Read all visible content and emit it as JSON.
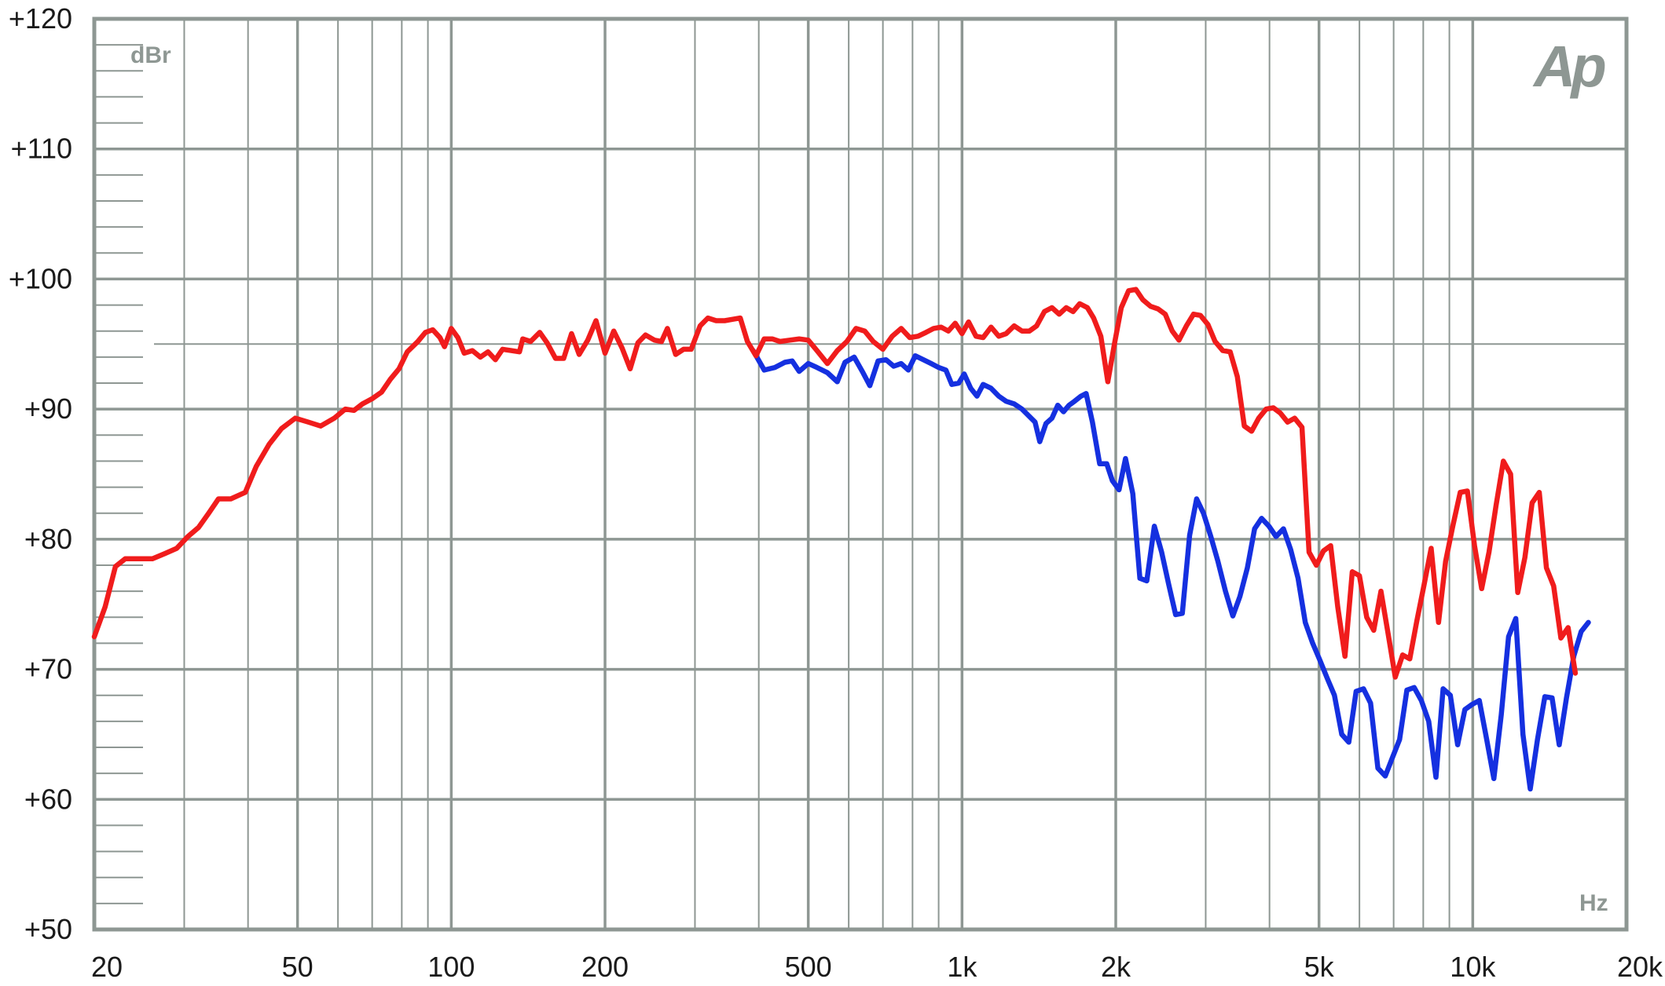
{
  "chart_data": {
    "type": "line",
    "xscale": "log",
    "xlim": [
      20,
      20000
    ],
    "ylim": [
      50,
      120
    ],
    "grid": true,
    "xlabel": "Hz",
    "ylabel": "dBr",
    "logo": "Ap",
    "x_ticks": [
      {
        "value": 20,
        "label": "20"
      },
      {
        "value": 50,
        "label": "50"
      },
      {
        "value": 100,
        "label": "100"
      },
      {
        "value": 200,
        "label": "200"
      },
      {
        "value": 500,
        "label": "500"
      },
      {
        "value": 1000,
        "label": "1k"
      },
      {
        "value": 2000,
        "label": "2k"
      },
      {
        "value": 5000,
        "label": "5k"
      },
      {
        "value": 10000,
        "label": "10k"
      },
      {
        "value": 20000,
        "label": "20k"
      }
    ],
    "y_ticks": [
      {
        "value": 120,
        "label": "+120"
      },
      {
        "value": 110,
        "label": "+110"
      },
      {
        "value": 100,
        "label": "+100"
      },
      {
        "value": 90,
        "label": "+90"
      },
      {
        "value": 80,
        "label": "+80"
      },
      {
        "value": 70,
        "label": "+70"
      },
      {
        "value": 60,
        "label": "+60"
      },
      {
        "value": 50,
        "label": "+50"
      }
    ],
    "series": [
      {
        "color": "#1530e0",
        "points": [
          [
            390,
            94.5
          ],
          [
            410,
            93.0
          ],
          [
            430,
            93.2
          ],
          [
            450,
            93.6
          ],
          [
            465,
            93.7
          ],
          [
            480,
            92.9
          ],
          [
            500,
            93.5
          ],
          [
            520,
            93.2
          ],
          [
            545,
            92.8
          ],
          [
            570,
            92.1
          ],
          [
            590,
            93.6
          ],
          [
            615,
            94.0
          ],
          [
            640,
            92.8
          ],
          [
            660,
            91.8
          ],
          [
            685,
            93.7
          ],
          [
            710,
            93.8
          ],
          [
            735,
            93.3
          ],
          [
            760,
            93.5
          ],
          [
            785,
            93.0
          ],
          [
            810,
            94.1
          ],
          [
            840,
            93.8
          ],
          [
            870,
            93.5
          ],
          [
            900,
            93.2
          ],
          [
            930,
            93.0
          ],
          [
            955,
            91.9
          ],
          [
            985,
            92.0
          ],
          [
            1010,
            92.7
          ],
          [
            1040,
            91.6
          ],
          [
            1070,
            91.0
          ],
          [
            1100,
            91.9
          ],
          [
            1140,
            91.6
          ],
          [
            1180,
            91.0
          ],
          [
            1220,
            90.6
          ],
          [
            1265,
            90.4
          ],
          [
            1310,
            90.0
          ],
          [
            1350,
            89.5
          ],
          [
            1390,
            89.0
          ],
          [
            1420,
            87.5
          ],
          [
            1460,
            88.9
          ],
          [
            1500,
            89.3
          ],
          [
            1540,
            90.3
          ],
          [
            1580,
            89.8
          ],
          [
            1620,
            90.3
          ],
          [
            1660,
            90.6
          ],
          [
            1710,
            91.0
          ],
          [
            1750,
            91.2
          ],
          [
            1800,
            89.0
          ],
          [
            1860,
            85.8
          ],
          [
            1920,
            85.8
          ],
          [
            1970,
            84.5
          ],
          [
            2030,
            83.8
          ],
          [
            2090,
            86.2
          ],
          [
            2160,
            83.5
          ],
          [
            2230,
            77.0
          ],
          [
            2300,
            76.8
          ],
          [
            2380,
            81.0
          ],
          [
            2460,
            79.0
          ],
          [
            2540,
            76.5
          ],
          [
            2620,
            74.2
          ],
          [
            2700,
            74.3
          ],
          [
            2790,
            80.3
          ],
          [
            2880,
            83.1
          ],
          [
            2970,
            82.0
          ],
          [
            3070,
            80.2
          ],
          [
            3170,
            78.3
          ],
          [
            3280,
            76.0
          ],
          [
            3390,
            74.1
          ],
          [
            3500,
            75.6
          ],
          [
            3620,
            77.8
          ],
          [
            3740,
            80.8
          ],
          [
            3860,
            81.6
          ],
          [
            3990,
            81.0
          ],
          [
            4120,
            80.2
          ],
          [
            4260,
            80.8
          ],
          [
            4400,
            79.2
          ],
          [
            4550,
            77.0
          ],
          [
            4700,
            73.6
          ],
          [
            4860,
            72.0
          ],
          [
            5020,
            70.7
          ],
          [
            5190,
            69.3
          ],
          [
            5360,
            68.0
          ],
          [
            5540,
            65.0
          ],
          [
            5720,
            64.4
          ],
          [
            5910,
            68.3
          ],
          [
            6110,
            68.5
          ],
          [
            6310,
            67.4
          ],
          [
            6520,
            62.4
          ],
          [
            6740,
            61.8
          ],
          [
            6960,
            63.2
          ],
          [
            7190,
            64.6
          ],
          [
            7430,
            68.4
          ],
          [
            7680,
            68.6
          ],
          [
            7930,
            67.6
          ],
          [
            8200,
            66.0
          ],
          [
            8470,
            61.7
          ],
          [
            8750,
            68.5
          ],
          [
            9040,
            68.0
          ],
          [
            9340,
            64.2
          ],
          [
            9650,
            66.9
          ],
          [
            9970,
            67.3
          ],
          [
            10300,
            67.6
          ],
          [
            10650,
            64.6
          ],
          [
            11000,
            61.6
          ],
          [
            11370,
            66.5
          ],
          [
            11750,
            72.5
          ],
          [
            12140,
            73.9
          ],
          [
            12540,
            65.0
          ],
          [
            12960,
            60.8
          ],
          [
            13390,
            64.6
          ],
          [
            13840,
            67.9
          ],
          [
            14300,
            67.8
          ],
          [
            14770,
            64.2
          ],
          [
            15260,
            67.8
          ],
          [
            15770,
            71.0
          ],
          [
            16300,
            72.9
          ],
          [
            16840,
            73.6
          ]
        ]
      },
      {
        "color": "#f01c1c",
        "points": [
          [
            20,
            72.5
          ],
          [
            21,
            74.8
          ],
          [
            22,
            77.9
          ],
          [
            23,
            78.5
          ],
          [
            24.5,
            78.5
          ],
          [
            26,
            78.5
          ],
          [
            27.5,
            78.9
          ],
          [
            29,
            79.3
          ],
          [
            30.5,
            80.2
          ],
          [
            32,
            80.9
          ],
          [
            33.5,
            82.0
          ],
          [
            35,
            83.1
          ],
          [
            37,
            83.1
          ],
          [
            39.5,
            83.6
          ],
          [
            41.5,
            85.6
          ],
          [
            44,
            87.3
          ],
          [
            46.5,
            88.5
          ],
          [
            49.5,
            89.3
          ],
          [
            52.5,
            89.0
          ],
          [
            55.5,
            88.7
          ],
          [
            59,
            89.3
          ],
          [
            62,
            90.0
          ],
          [
            64.5,
            89.9
          ],
          [
            67,
            90.4
          ],
          [
            70,
            90.8
          ],
          [
            73,
            91.3
          ],
          [
            76,
            92.3
          ],
          [
            79,
            93.1
          ],
          [
            82,
            94.4
          ],
          [
            86,
            95.2
          ],
          [
            89,
            95.9
          ],
          [
            92,
            96.1
          ],
          [
            95,
            95.5
          ],
          [
            97,
            94.8
          ],
          [
            100,
            96.2
          ],
          [
            103,
            95.5
          ],
          [
            106,
            94.3
          ],
          [
            110,
            94.5
          ],
          [
            114,
            94.0
          ],
          [
            118,
            94.4
          ],
          [
            122,
            93.8
          ],
          [
            126,
            94.6
          ],
          [
            131,
            94.5
          ],
          [
            136,
            94.4
          ],
          [
            138,
            95.4
          ],
          [
            143,
            95.2
          ],
          [
            149,
            95.9
          ],
          [
            154,
            95.1
          ],
          [
            160,
            93.9
          ],
          [
            166,
            93.9
          ],
          [
            172,
            95.8
          ],
          [
            178,
            94.2
          ],
          [
            185,
            95.3
          ],
          [
            192,
            96.8
          ],
          [
            200,
            94.3
          ],
          [
            208,
            96.0
          ],
          [
            216,
            94.7
          ],
          [
            224,
            93.1
          ],
          [
            232,
            95.1
          ],
          [
            240,
            95.7
          ],
          [
            250,
            95.3
          ],
          [
            258,
            95.2
          ],
          [
            265,
            96.2
          ],
          [
            275,
            94.2
          ],
          [
            285,
            94.6
          ],
          [
            295,
            94.6
          ],
          [
            307,
            96.4
          ],
          [
            318,
            97.0
          ],
          [
            330,
            96.8
          ],
          [
            343,
            96.8
          ],
          [
            355,
            96.9
          ],
          [
            368,
            97.0
          ],
          [
            380,
            95.2
          ],
          [
            395,
            94.1
          ],
          [
            410,
            95.4
          ],
          [
            425,
            95.4
          ],
          [
            440,
            95.2
          ],
          [
            460,
            95.3
          ],
          [
            480,
            95.4
          ],
          [
            500,
            95.3
          ],
          [
            520,
            94.5
          ],
          [
            545,
            93.5
          ],
          [
            570,
            94.5
          ],
          [
            595,
            95.2
          ],
          [
            620,
            96.2
          ],
          [
            645,
            96.0
          ],
          [
            670,
            95.2
          ],
          [
            700,
            94.6
          ],
          [
            730,
            95.6
          ],
          [
            760,
            96.2
          ],
          [
            790,
            95.5
          ],
          [
            820,
            95.6
          ],
          [
            850,
            95.9
          ],
          [
            880,
            96.2
          ],
          [
            910,
            96.3
          ],
          [
            940,
            96.0
          ],
          [
            970,
            96.6
          ],
          [
            1000,
            95.8
          ],
          [
            1030,
            96.7
          ],
          [
            1065,
            95.6
          ],
          [
            1100,
            95.5
          ],
          [
            1140,
            96.3
          ],
          [
            1180,
            95.6
          ],
          [
            1220,
            95.8
          ],
          [
            1265,
            96.4
          ],
          [
            1310,
            96.0
          ],
          [
            1355,
            96.0
          ],
          [
            1400,
            96.4
          ],
          [
            1450,
            97.5
          ],
          [
            1500,
            97.8
          ],
          [
            1550,
            97.3
          ],
          [
            1600,
            97.8
          ],
          [
            1650,
            97.5
          ],
          [
            1700,
            98.1
          ],
          [
            1760,
            97.8
          ],
          [
            1810,
            97.0
          ],
          [
            1870,
            95.6
          ],
          [
            1930,
            92.1
          ],
          [
            1990,
            95.1
          ],
          [
            2050,
            97.8
          ],
          [
            2120,
            99.1
          ],
          [
            2190,
            99.2
          ],
          [
            2260,
            98.4
          ],
          [
            2340,
            97.9
          ],
          [
            2420,
            97.7
          ],
          [
            2500,
            97.3
          ],
          [
            2580,
            96.0
          ],
          [
            2660,
            95.3
          ],
          [
            2750,
            96.4
          ],
          [
            2840,
            97.3
          ],
          [
            2930,
            97.2
          ],
          [
            3030,
            96.5
          ],
          [
            3130,
            95.2
          ],
          [
            3240,
            94.5
          ],
          [
            3350,
            94.4
          ],
          [
            3460,
            92.5
          ],
          [
            3570,
            88.7
          ],
          [
            3690,
            88.3
          ],
          [
            3810,
            89.3
          ],
          [
            3940,
            90.0
          ],
          [
            4070,
            90.1
          ],
          [
            4200,
            89.7
          ],
          [
            4340,
            89.0
          ],
          [
            4480,
            89.3
          ],
          [
            4630,
            88.6
          ],
          [
            4780,
            79.0
          ],
          [
            4940,
            78.0
          ],
          [
            5100,
            79.1
          ],
          [
            5270,
            79.5
          ],
          [
            5440,
            74.8
          ],
          [
            5620,
            71.0
          ],
          [
            5810,
            77.5
          ],
          [
            6000,
            77.2
          ],
          [
            6200,
            74.0
          ],
          [
            6400,
            73.0
          ],
          [
            6610,
            76.0
          ],
          [
            6830,
            72.7
          ],
          [
            7050,
            69.4
          ],
          [
            7290,
            71.1
          ],
          [
            7530,
            70.8
          ],
          [
            7770,
            73.7
          ],
          [
            8030,
            76.5
          ],
          [
            8290,
            79.3
          ],
          [
            8570,
            73.6
          ],
          [
            8850,
            78.3
          ],
          [
            9140,
            81.0
          ],
          [
            9450,
            83.6
          ],
          [
            9760,
            83.7
          ],
          [
            10080,
            79.5
          ],
          [
            10410,
            76.2
          ],
          [
            10760,
            79.0
          ],
          [
            11110,
            82.6
          ],
          [
            11480,
            86.0
          ],
          [
            11860,
            85.0
          ],
          [
            12250,
            75.9
          ],
          [
            12650,
            78.6
          ],
          [
            13070,
            82.8
          ],
          [
            13500,
            83.6
          ],
          [
            13940,
            77.8
          ],
          [
            14400,
            76.4
          ],
          [
            14880,
            72.4
          ],
          [
            15370,
            73.2
          ],
          [
            15880,
            69.7
          ]
        ]
      }
    ]
  }
}
